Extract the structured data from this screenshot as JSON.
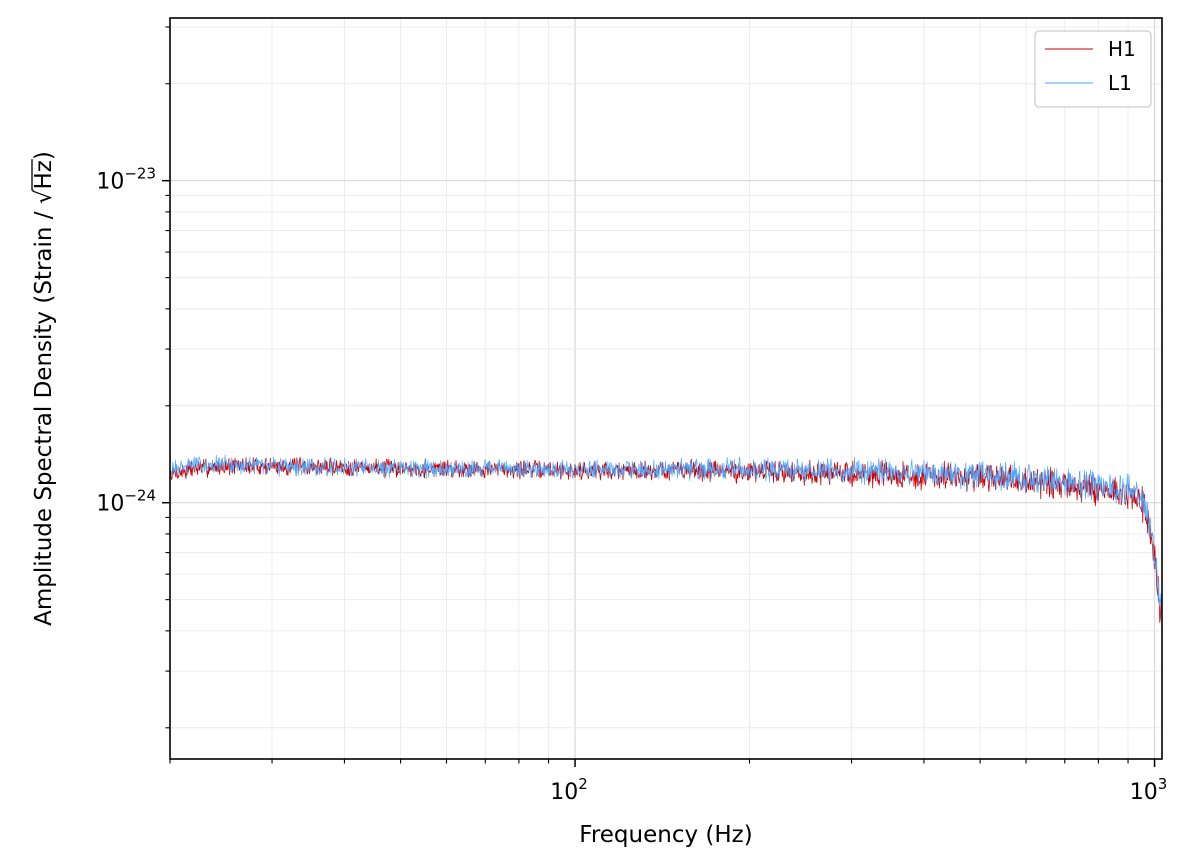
{
  "chart_data": {
    "type": "line",
    "title": "",
    "xlabel": "Frequency (Hz)",
    "ylabel_prefix": "Amplitude Spectral Density (Strain / ",
    "ylabel_radical": "√",
    "ylabel_radicand": "Hz",
    "ylabel_suffix": ")",
    "xscale": "log",
    "yscale": "log",
    "xlim": [
      20,
      1030
    ],
    "ylim": [
      1.6e-25,
      3.2e-23
    ],
    "grid": true,
    "legend_position": "top-right",
    "x_ticks": [
      {
        "value": 100,
        "base": "10",
        "exp": "2"
      },
      {
        "value": 1000,
        "base": "10",
        "exp": "3"
      }
    ],
    "y_ticks": [
      {
        "value": 1e-24,
        "base": "10",
        "exp": "−24"
      },
      {
        "value": 1e-23,
        "base": "10",
        "exp": "−23"
      }
    ],
    "series": [
      {
        "name": "H1",
        "color": "#cc0000",
        "x": [
          20,
          22,
          25,
          30,
          35,
          40,
          50,
          60,
          70,
          80,
          100,
          120,
          150,
          200,
          250,
          300,
          400,
          500,
          600,
          700,
          800,
          900,
          940,
          960,
          980,
          1000,
          1020,
          1030
        ],
        "y": [
          1.22e-24,
          1.28e-24,
          1.3e-24,
          1.3e-24,
          1.29e-24,
          1.29e-24,
          1.28e-24,
          1.28e-24,
          1.27e-24,
          1.27e-24,
          1.26e-24,
          1.26e-24,
          1.26e-24,
          1.25e-24,
          1.24e-24,
          1.23e-24,
          1.21e-24,
          1.19e-24,
          1.16e-24,
          1.13e-24,
          1.1e-24,
          1.06e-24,
          1.02e-24,
          9.6e-25,
          8.4e-25,
          6.6e-25,
          4.9e-25,
          4.4e-25
        ]
      },
      {
        "name": "L1",
        "color": "#4da6ff",
        "x": [
          20,
          22,
          25,
          30,
          35,
          40,
          50,
          60,
          70,
          80,
          100,
          120,
          150,
          200,
          250,
          300,
          400,
          500,
          600,
          700,
          800,
          900,
          940,
          960,
          980,
          1000,
          1020,
          1030
        ],
        "y": [
          1.25e-24,
          1.32e-24,
          1.31e-24,
          1.3e-24,
          1.29e-24,
          1.29e-24,
          1.28e-24,
          1.28e-24,
          1.28e-24,
          1.27e-24,
          1.27e-24,
          1.27e-24,
          1.27e-24,
          1.27e-24,
          1.26e-24,
          1.25e-24,
          1.24e-24,
          1.22e-24,
          1.19e-24,
          1.16e-24,
          1.13e-24,
          1.09e-24,
          1.05e-24,
          9.9e-25,
          8.7e-25,
          6.9e-25,
          5.1e-25,
          4.5e-25
        ]
      }
    ]
  }
}
